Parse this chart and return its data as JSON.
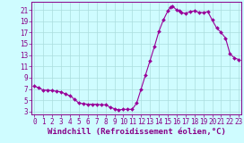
{
  "x_values": [
    0,
    0.5,
    1,
    1.5,
    2,
    2.5,
    3,
    3.5,
    4,
    4.5,
    5,
    5.5,
    6,
    6.5,
    7,
    7.5,
    8,
    8.5,
    9,
    9.5,
    10,
    10.5,
    11,
    11.5,
    12,
    12.5,
    13,
    13.5,
    14,
    14.5,
    15,
    15.3,
    15.5,
    16,
    16.3,
    16.5,
    17,
    17.5,
    18,
    18.5,
    19,
    19.5,
    20,
    20.5,
    21,
    21.5,
    22,
    22.5,
    23
  ],
  "y_values": [
    7.5,
    7.2,
    6.8,
    6.8,
    6.7,
    6.6,
    6.5,
    6.1,
    5.8,
    5.2,
    4.5,
    4.4,
    4.3,
    4.3,
    4.3,
    4.2,
    4.2,
    3.8,
    3.5,
    3.3,
    3.4,
    3.4,
    3.4,
    4.5,
    7.0,
    9.5,
    12.0,
    14.5,
    17.2,
    19.2,
    20.8,
    21.5,
    21.7,
    21.0,
    20.8,
    20.5,
    20.4,
    20.7,
    20.8,
    20.6,
    20.5,
    20.7,
    19.2,
    17.8,
    17.0,
    16.0,
    13.2,
    12.5,
    12.2
  ],
  "line_color": "#990099",
  "marker": "D",
  "markersize": 2.0,
  "linewidth": 0.8,
  "xlabel": "Windchill (Refroidissement éolien,°C)",
  "xlabel_fontsize": 6.5,
  "ylabel_ticks": [
    3,
    5,
    7,
    9,
    11,
    13,
    15,
    17,
    19,
    21
  ],
  "xticks": [
    0,
    1,
    2,
    3,
    4,
    5,
    6,
    7,
    8,
    9,
    10,
    11,
    12,
    13,
    14,
    15,
    16,
    17,
    18,
    19,
    20,
    21,
    22,
    23
  ],
  "xlim": [
    -0.3,
    23.3
  ],
  "ylim": [
    2.5,
    22.5
  ],
  "bg_color": "#cffcff",
  "grid_color": "#aadddd",
  "tick_color": "#880088",
  "tick_fontsize": 5.5,
  "spine_color": "#880088"
}
